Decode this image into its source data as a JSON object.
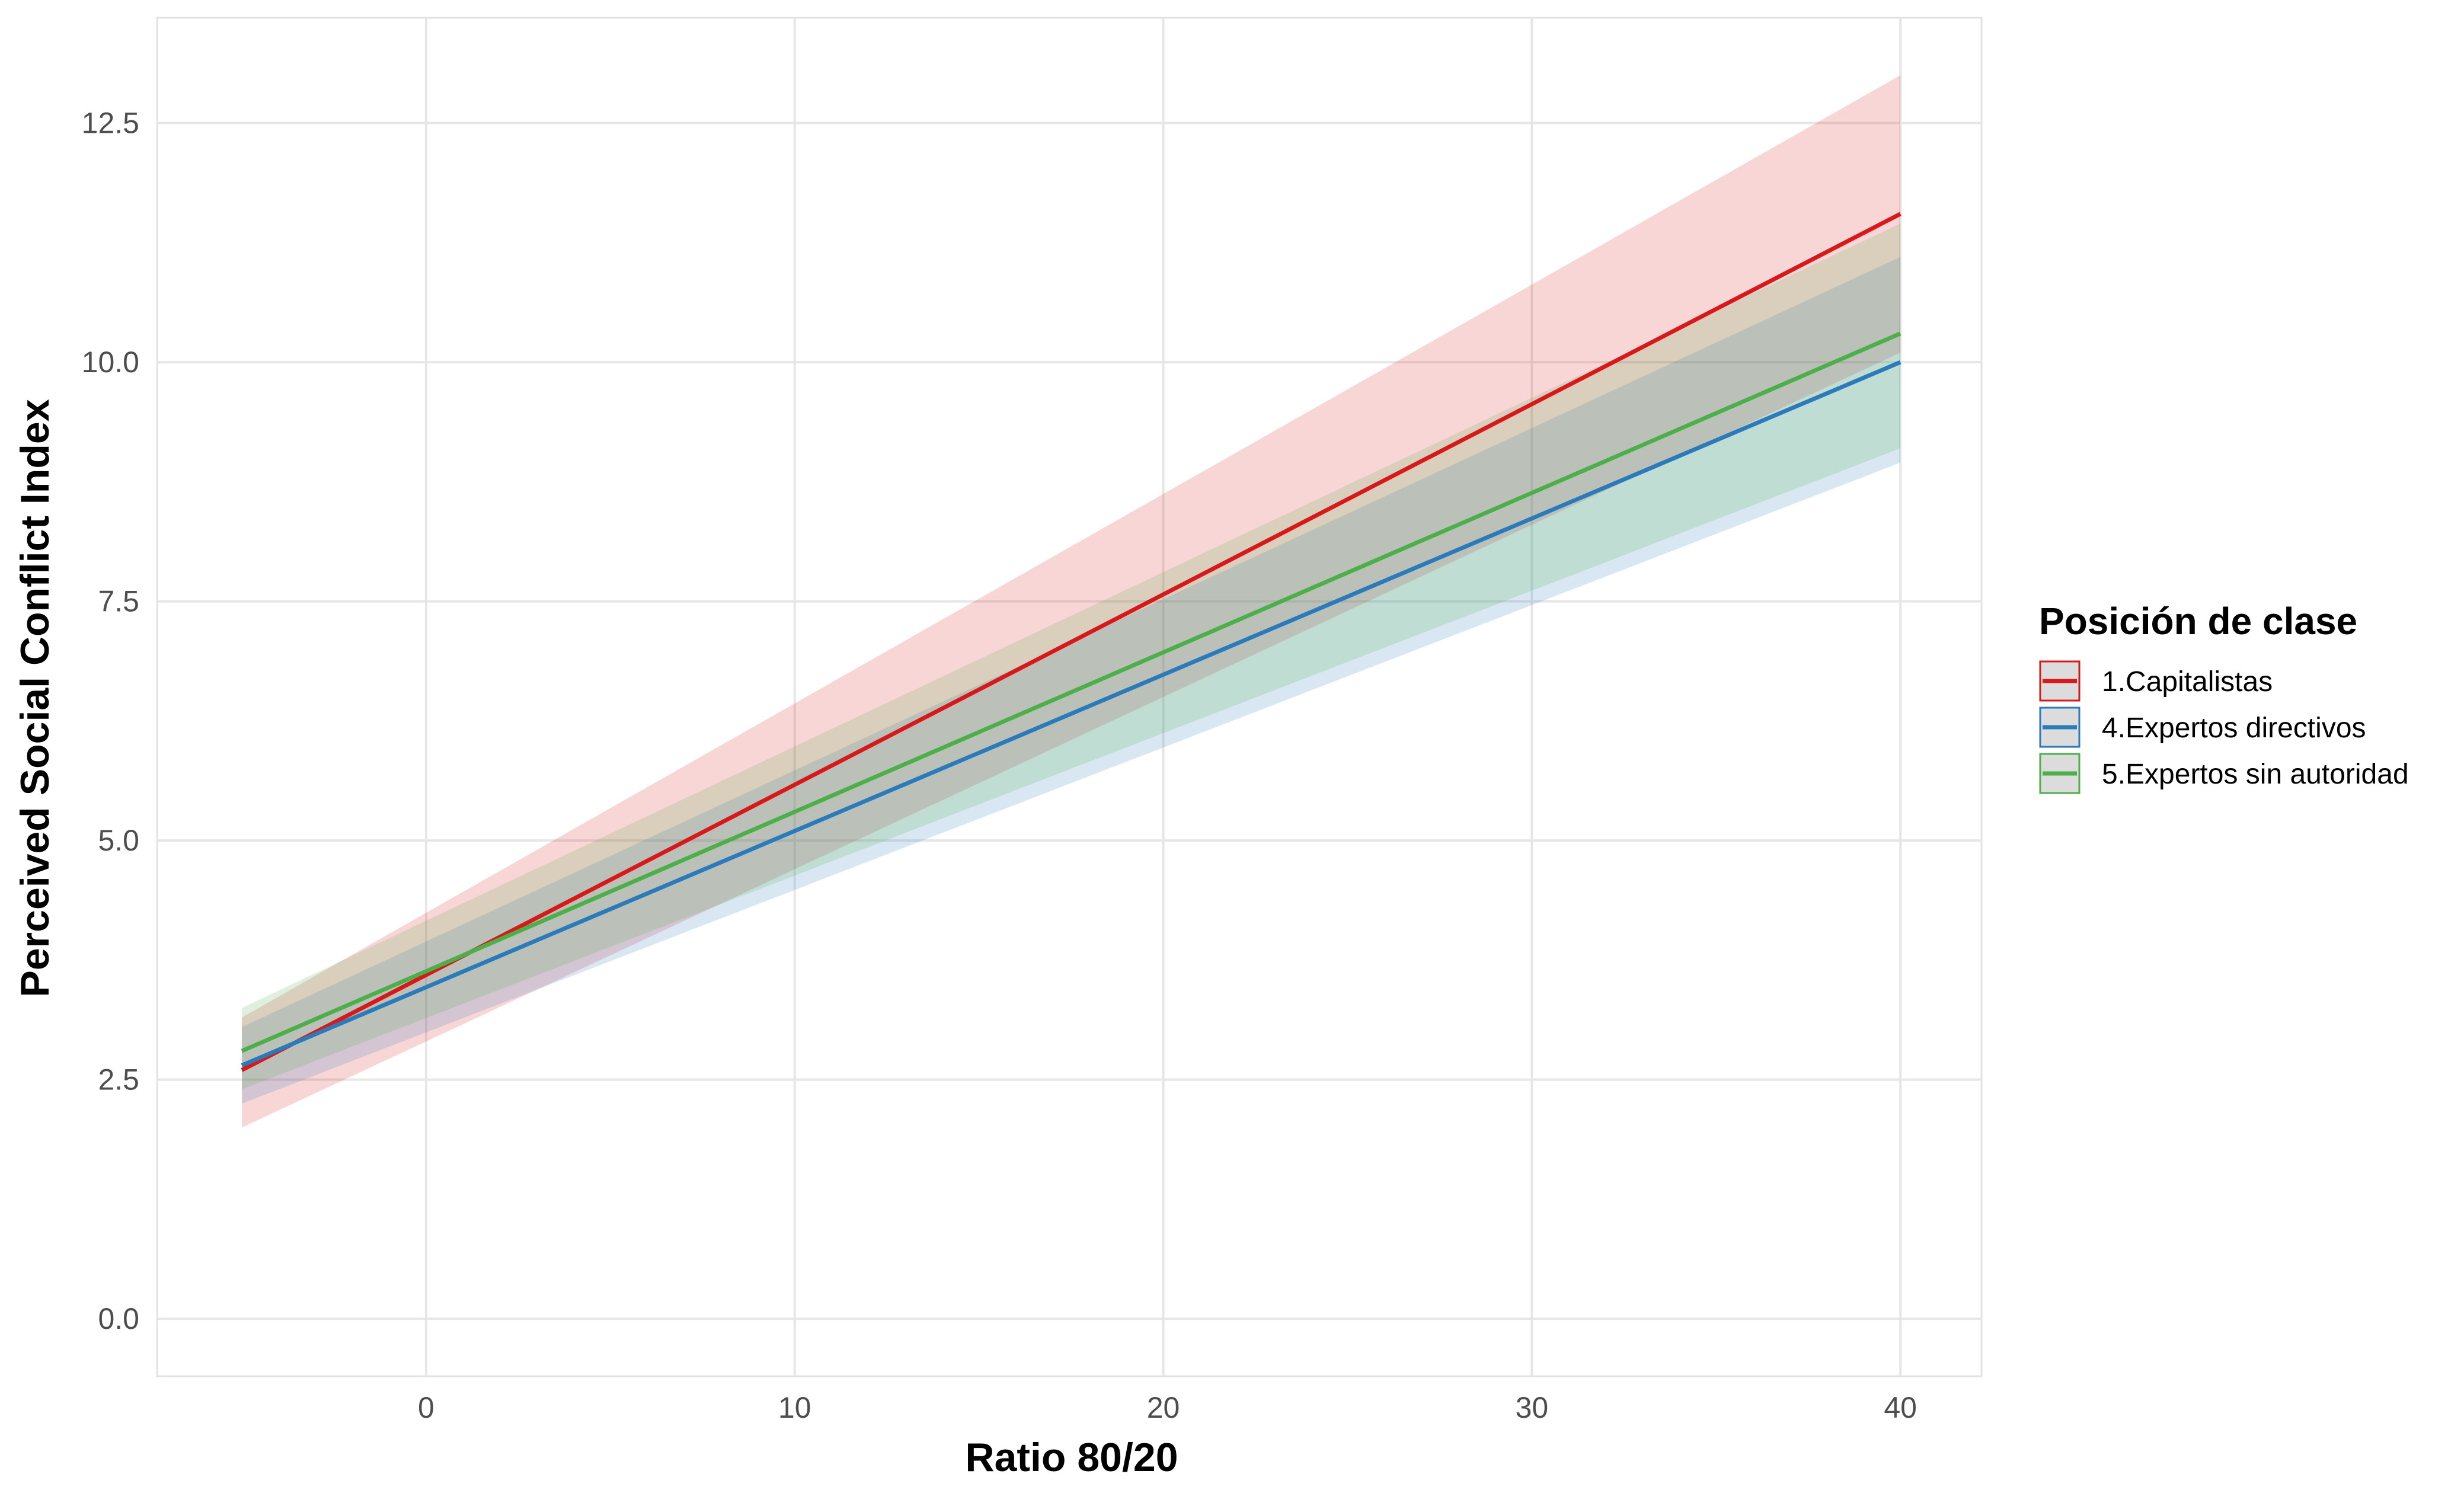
{
  "chart_data": {
    "type": "line",
    "xlabel": "Ratio 80/20",
    "ylabel": "Perceived Social Conflict Index",
    "xlim": [
      -7.3,
      42.2
    ],
    "ylim": [
      -0.6,
      13.6
    ],
    "xticks": [
      0,
      10,
      20,
      30,
      40
    ],
    "yticks": [
      0.0,
      2.5,
      5.0,
      7.5,
      10.0,
      12.5
    ],
    "xtick_labels": [
      "0",
      "10",
      "20",
      "30",
      "40"
    ],
    "ytick_labels": [
      "0.0",
      "2.5",
      "5.0",
      "7.5",
      "10.0",
      "12.5"
    ],
    "grid": true,
    "legend": {
      "title": "Posición de clase",
      "position": "right"
    },
    "series": [
      {
        "name": "1.Capitalistas",
        "color": "#d7191c",
        "x": [
          -5,
          40
        ],
        "y": [
          2.6,
          11.55
        ],
        "ci_lower": [
          2.0,
          10.1
        ],
        "ci_upper": [
          3.15,
          13.0
        ]
      },
      {
        "name": "4.Expertos directivos",
        "color": "#2b7bba",
        "x": [
          -5,
          40
        ],
        "y": [
          2.65,
          10.0
        ],
        "ci_lower": [
          2.25,
          8.95
        ],
        "ci_upper": [
          3.05,
          11.1
        ]
      },
      {
        "name": "5.Expertos sin autoridad",
        "color": "#4daf4a",
        "x": [
          -5,
          40
        ],
        "y": [
          2.8,
          10.3
        ],
        "ci_lower": [
          2.4,
          9.1
        ],
        "ci_upper": [
          3.25,
          11.45
        ]
      }
    ]
  }
}
